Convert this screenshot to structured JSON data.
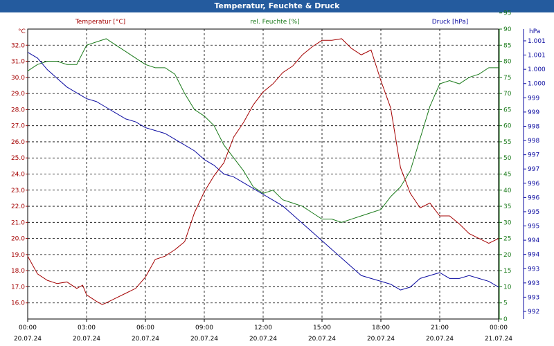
{
  "window": {
    "title": "Temperatur, Feuchte & Druck",
    "title_bg": "#245b9e",
    "title_fg": "#ffffff"
  },
  "colors": {
    "temperature": "#a40000",
    "humidity": "#1a7a1a",
    "pressure": "#0a0aa0",
    "grid": "#000000"
  },
  "chart_data": {
    "type": "line",
    "title": "Temperatur, Feuchte & Druck",
    "xlabel": "",
    "x_ticks": [
      {
        "time": "00:00",
        "date": "20.07.24"
      },
      {
        "time": "03:00",
        "date": "20.07.24"
      },
      {
        "time": "06:00",
        "date": "20.07.24"
      },
      {
        "time": "09:00",
        "date": "20.07.24"
      },
      {
        "time": "12:00",
        "date": "20.07.24"
      },
      {
        "time": "15:00",
        "date": "20.07.24"
      },
      {
        "time": "18:00",
        "date": "20.07.24"
      },
      {
        "time": "21:00",
        "date": "20.07.24"
      },
      {
        "time": "00:00",
        "date": "21.07.24"
      }
    ],
    "xlim": [
      0,
      24
    ],
    "axes": {
      "temperature": {
        "label": "Temperatur [°C]",
        "unit": "°C",
        "ylim": [
          15.0,
          33.0
        ],
        "ticks": [
          "16.0",
          "17.0",
          "18.0",
          "19.0",
          "20.0",
          "21.0",
          "22.0",
          "23.0",
          "24.0",
          "25.0",
          "26.0",
          "27.0",
          "28.0",
          "29.0",
          "30.0",
          "31.0",
          "32.0"
        ]
      },
      "humidity": {
        "label": "rel. Feuchte [%]",
        "unit": "%",
        "ylim": [
          0,
          90
        ],
        "ticks": [
          "0",
          "5",
          "10",
          "15",
          "20",
          "25",
          "30",
          "35",
          "40",
          "45",
          "50",
          "55",
          "60",
          "65",
          "70",
          "75",
          "80",
          "85",
          "90",
          "95"
        ]
      },
      "pressure": {
        "label": "Druck [hPa]",
        "unit": "hPa",
        "ticks": [
          "992",
          "993",
          "993",
          "993",
          "994",
          "994",
          "995",
          "995",
          "996",
          "996",
          "997",
          "997",
          "998",
          "998",
          "999",
          "999",
          "1.000",
          "1.000",
          "1.001",
          "1.001"
        ]
      }
    },
    "series": [
      {
        "name": "Temperatur",
        "axis": "temperature",
        "x": [
          0,
          0.5,
          1,
          1.5,
          2,
          2.5,
          2.8,
          3,
          3.5,
          3.8,
          4,
          4.5,
          5,
          5.5,
          6,
          6.5,
          7,
          7.5,
          8,
          8.5,
          9,
          9.5,
          10,
          10.5,
          11,
          11.5,
          12,
          12.5,
          13,
          13.5,
          14,
          14.5,
          15,
          15.5,
          16,
          16.5,
          17,
          17.5,
          18,
          18.5,
          19,
          19.5,
          20,
          20.5,
          21,
          21.5,
          22,
          22.5,
          23,
          23.5,
          24
        ],
        "values": [
          18.9,
          17.8,
          17.4,
          17.2,
          17.3,
          16.9,
          17.1,
          16.5,
          16.1,
          15.9,
          16.0,
          16.3,
          16.6,
          16.9,
          17.6,
          18.7,
          18.9,
          19.3,
          19.8,
          21.6,
          22.9,
          23.9,
          24.7,
          26.3,
          27.2,
          28.3,
          29.1,
          29.6,
          30.3,
          30.7,
          31.4,
          31.9,
          32.3,
          32.3,
          32.4,
          31.8,
          31.4,
          31.7,
          29.8,
          28.1,
          24.4,
          22.8,
          21.9,
          22.2,
          21.4,
          21.4,
          20.9,
          20.3,
          20.0,
          19.7,
          20.0
        ]
      },
      {
        "name": "rel. Feuchte",
        "axis": "humidity",
        "x": [
          0,
          0.5,
          1,
          1.5,
          2,
          2.5,
          3,
          3.5,
          4,
          4.5,
          5,
          5.5,
          6,
          6.5,
          7,
          7.5,
          8,
          8.5,
          9,
          9.5,
          10,
          10.5,
          11,
          11.5,
          12,
          12.5,
          13,
          13.5,
          14,
          14.5,
          15,
          15.5,
          16,
          16.5,
          17,
          17.5,
          18,
          18.5,
          19,
          19.5,
          20,
          20.5,
          21,
          21.5,
          22,
          22.5,
          23,
          23.5,
          24
        ],
        "values": [
          77,
          79,
          80,
          80,
          79,
          79,
          85,
          86,
          87,
          85,
          83,
          81,
          79,
          78,
          78,
          76,
          70,
          65,
          63,
          60,
          54,
          50,
          46,
          41,
          39,
          40,
          37,
          36,
          35,
          33,
          31,
          31,
          30,
          31,
          32,
          33,
          34,
          38,
          41,
          46,
          56,
          66,
          73,
          74,
          73,
          75,
          76,
          78,
          78
        ]
      },
      {
        "name": "Druck",
        "axis": "pressure",
        "x": [
          0,
          0.5,
          1,
          1.5,
          2,
          2.5,
          3,
          3.5,
          4,
          4.5,
          5,
          5.5,
          6,
          6.5,
          7,
          7.5,
          8,
          8.5,
          9,
          9.5,
          10,
          10.5,
          11,
          11.5,
          12,
          12.5,
          13,
          13.5,
          14,
          14.5,
          15,
          15.5,
          16,
          16.5,
          17,
          17.5,
          18,
          18.5,
          19,
          19.5,
          20,
          20.5,
          21,
          21.5,
          22,
          22.5,
          23,
          23.5,
          24
        ],
        "values_plot_position_pct": [
          92,
          90,
          86,
          83,
          80,
          78,
          76,
          75,
          73,
          71,
          69,
          68,
          66,
          65,
          64,
          62,
          60,
          58,
          55,
          53,
          50,
          49,
          47,
          45,
          43,
          41,
          39,
          36,
          33,
          30,
          27,
          24,
          21,
          18,
          15,
          14,
          13,
          12,
          10,
          11,
          14,
          15,
          16,
          14,
          14,
          15,
          14,
          13,
          11
        ]
      }
    ],
    "grid": true
  }
}
